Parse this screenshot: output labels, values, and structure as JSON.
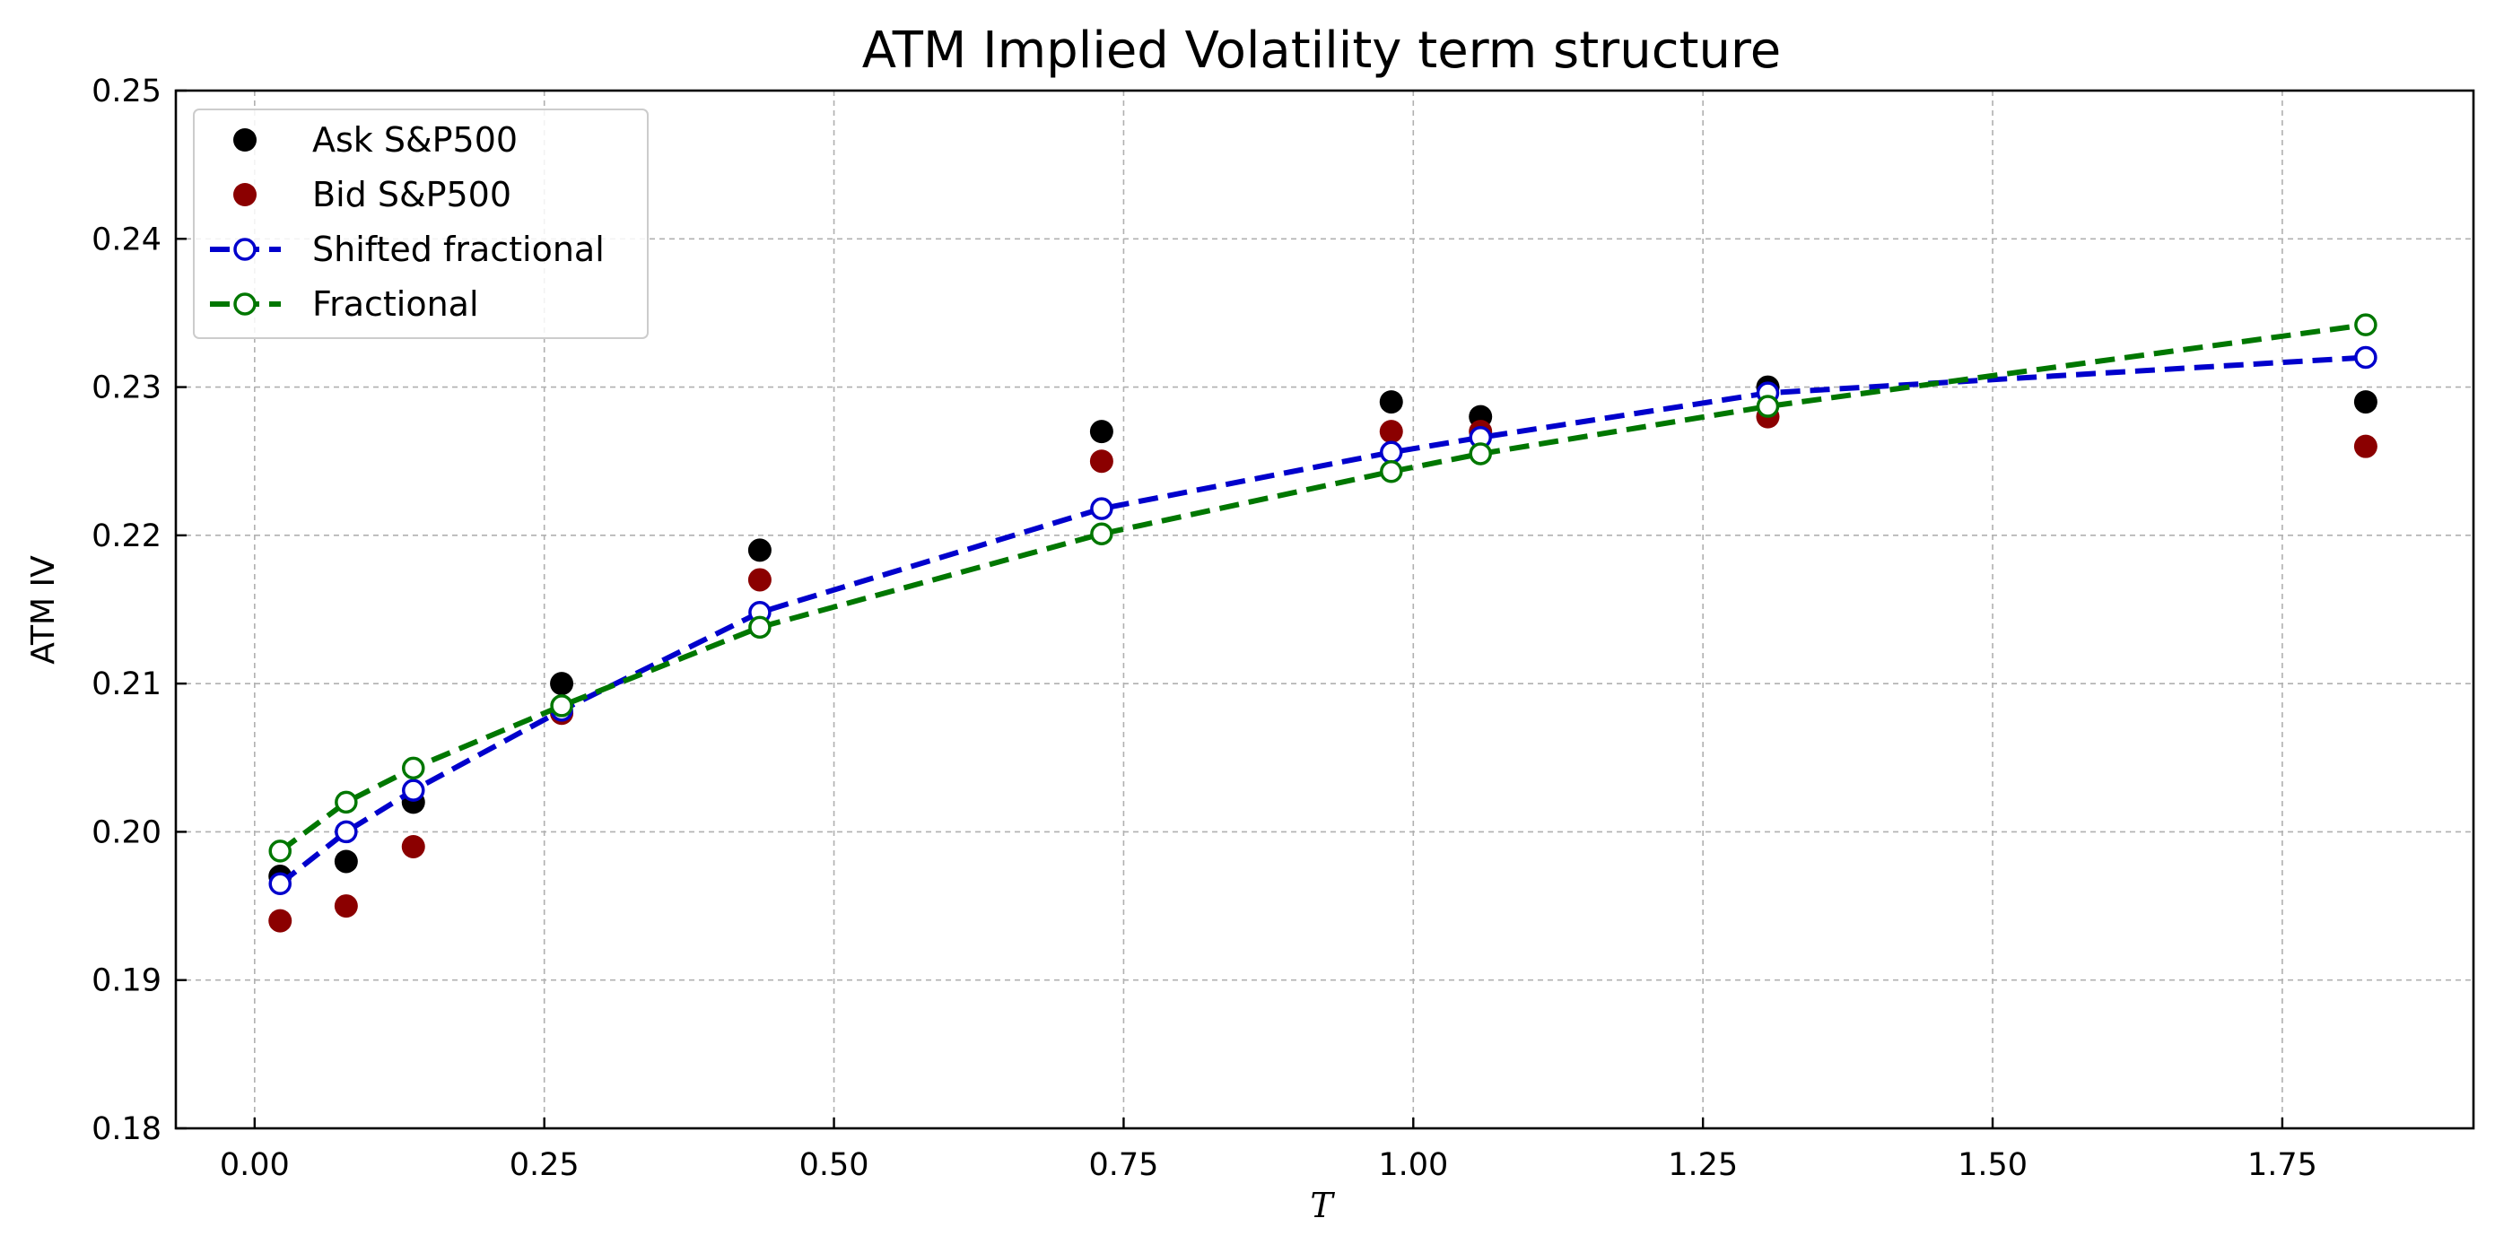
{
  "chart_data": {
    "type": "line",
    "title": "ATM Implied Volatility term structure",
    "xlabel": "T",
    "ylabel": "ATM IV",
    "xlim": [
      -0.068,
      1.915
    ],
    "ylim": [
      0.18,
      0.25
    ],
    "xticks": [
      0.0,
      0.25,
      0.5,
      0.75,
      1.0,
      1.25,
      1.5,
      1.75
    ],
    "xtick_labels": [
      "0.00",
      "0.25",
      "0.50",
      "0.75",
      "1.00",
      "1.25",
      "1.50",
      "1.75"
    ],
    "yticks": [
      0.18,
      0.19,
      0.2,
      0.21,
      0.22,
      0.23,
      0.24,
      0.25
    ],
    "ytick_labels": [
      "0.18",
      "0.19",
      "0.20",
      "0.21",
      "0.22",
      "0.23",
      "0.24",
      "0.25"
    ],
    "grid": true,
    "legend_position": "top-left",
    "x": [
      0.022,
      0.079,
      0.137,
      0.265,
      0.436,
      0.731,
      0.981,
      1.058,
      1.306,
      1.822
    ],
    "series": [
      {
        "name": "Ask S&P500",
        "style": "markers",
        "marker": "filled-circle",
        "color": "#000000",
        "values": [
          0.197,
          0.198,
          0.202,
          0.21,
          0.219,
          0.227,
          0.229,
          0.228,
          0.23,
          0.229
        ]
      },
      {
        "name": "Bid S&P500",
        "style": "markers",
        "marker": "filled-circle",
        "color": "#8b0000",
        "values": [
          0.194,
          0.195,
          0.199,
          0.208,
          0.217,
          0.225,
          0.227,
          0.227,
          0.228,
          0.226
        ]
      },
      {
        "name": "Shifted fractional",
        "style": "dashed-line",
        "marker": "open-circle",
        "color": "#0000cc",
        "values": [
          0.1965,
          0.2,
          0.2028,
          0.2082,
          0.2148,
          0.2218,
          0.2256,
          0.2266,
          0.2296,
          0.232
        ]
      },
      {
        "name": "Fractional",
        "style": "dashed-line",
        "marker": "open-circle",
        "color": "#007700",
        "values": [
          0.1987,
          0.202,
          0.2043,
          0.2085,
          0.2138,
          0.2201,
          0.2243,
          0.2255,
          0.2287,
          0.2342
        ]
      }
    ]
  }
}
